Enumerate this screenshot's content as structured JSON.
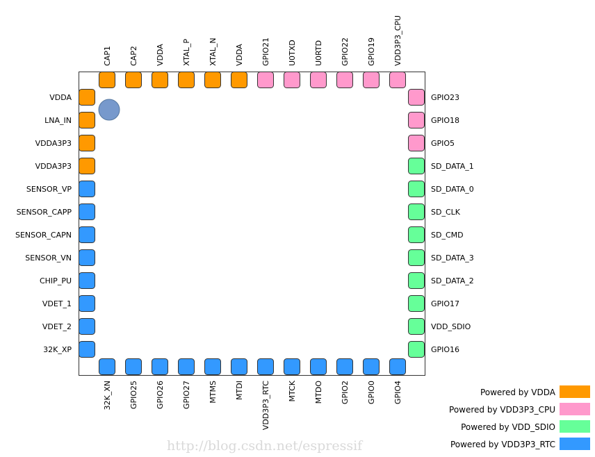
{
  "colors": {
    "vdda": "#ff9900",
    "vdd3p3_cpu": "#ff99cc",
    "vdd_sdio": "#66ff99",
    "vdd3p3_rtc": "#3399ff",
    "pin1_marker": "#7799cc"
  },
  "pins": {
    "top": [
      {
        "name": "CAP1",
        "domain": "vdda"
      },
      {
        "name": "CAP2",
        "domain": "vdda"
      },
      {
        "name": "VDDA",
        "domain": "vdda"
      },
      {
        "name": "XTAL_P",
        "domain": "vdda"
      },
      {
        "name": "XTAL_N",
        "domain": "vdda"
      },
      {
        "name": "VDDA",
        "domain": "vdda"
      },
      {
        "name": "GPIO21",
        "domain": "vdd3p3_cpu"
      },
      {
        "name": "U0TXD",
        "domain": "vdd3p3_cpu"
      },
      {
        "name": "U0RTD",
        "domain": "vdd3p3_cpu"
      },
      {
        "name": "GPIO22",
        "domain": "vdd3p3_cpu"
      },
      {
        "name": "GPIO19",
        "domain": "vdd3p3_cpu"
      },
      {
        "name": "VDD3P3_CPU",
        "domain": "vdd3p3_cpu"
      }
    ],
    "left": [
      {
        "name": "VDDA",
        "domain": "vdda"
      },
      {
        "name": "LNA_IN",
        "domain": "vdda"
      },
      {
        "name": "VDDA3P3",
        "domain": "vdda"
      },
      {
        "name": "VDDA3P3",
        "domain": "vdda"
      },
      {
        "name": "SENSOR_VP",
        "domain": "vdd3p3_rtc"
      },
      {
        "name": "SENSOR_CAPP",
        "domain": "vdd3p3_rtc"
      },
      {
        "name": "SENSOR_CAPN",
        "domain": "vdd3p3_rtc"
      },
      {
        "name": "SENSOR_VN",
        "domain": "vdd3p3_rtc"
      },
      {
        "name": "CHIP_PU",
        "domain": "vdd3p3_rtc"
      },
      {
        "name": "VDET_1",
        "domain": "vdd3p3_rtc"
      },
      {
        "name": "VDET_2",
        "domain": "vdd3p3_rtc"
      },
      {
        "name": "32K_XP",
        "domain": "vdd3p3_rtc"
      }
    ],
    "right": [
      {
        "name": "GPIO23",
        "domain": "vdd3p3_cpu"
      },
      {
        "name": "GPIO18",
        "domain": "vdd3p3_cpu"
      },
      {
        "name": "GPIO5",
        "domain": "vdd3p3_cpu"
      },
      {
        "name": "SD_DATA_1",
        "domain": "vdd_sdio"
      },
      {
        "name": "SD_DATA_0",
        "domain": "vdd_sdio"
      },
      {
        "name": "SD_CLK",
        "domain": "vdd_sdio"
      },
      {
        "name": "SD_CMD",
        "domain": "vdd_sdio"
      },
      {
        "name": "SD_DATA_3",
        "domain": "vdd_sdio"
      },
      {
        "name": "SD_DATA_2",
        "domain": "vdd_sdio"
      },
      {
        "name": "GPIO17",
        "domain": "vdd_sdio"
      },
      {
        "name": "VDD_SDIO",
        "domain": "vdd_sdio"
      },
      {
        "name": "GPIO16",
        "domain": "vdd_sdio"
      }
    ],
    "bottom": [
      {
        "name": "32K_XN",
        "domain": "vdd3p3_rtc"
      },
      {
        "name": "GPIO25",
        "domain": "vdd3p3_rtc"
      },
      {
        "name": "GPIO26",
        "domain": "vdd3p3_rtc"
      },
      {
        "name": "GPIO27",
        "domain": "vdd3p3_rtc"
      },
      {
        "name": "MTMS",
        "domain": "vdd3p3_rtc"
      },
      {
        "name": "MTDI",
        "domain": "vdd3p3_rtc"
      },
      {
        "name": "VDD3P3_RTC",
        "domain": "vdd3p3_rtc"
      },
      {
        "name": "MTCK",
        "domain": "vdd3p3_rtc"
      },
      {
        "name": "MTDO",
        "domain": "vdd3p3_rtc"
      },
      {
        "name": "GPIO2",
        "domain": "vdd3p3_rtc"
      },
      {
        "name": "GPIO0",
        "domain": "vdd3p3_rtc"
      },
      {
        "name": "GPIO4",
        "domain": "vdd3p3_rtc"
      }
    ]
  },
  "legend": [
    {
      "label": "Powered by VDDA",
      "domain": "vdda"
    },
    {
      "label": "Powered by VDD3P3_CPU",
      "domain": "vdd3p3_cpu"
    },
    {
      "label": "Powered by VDD_SDIO",
      "domain": "vdd_sdio"
    },
    {
      "label": "Powered by VDD3P3_RTC",
      "domain": "vdd3p3_rtc"
    }
  ],
  "watermark": "http://blog.csdn.net/espressif"
}
